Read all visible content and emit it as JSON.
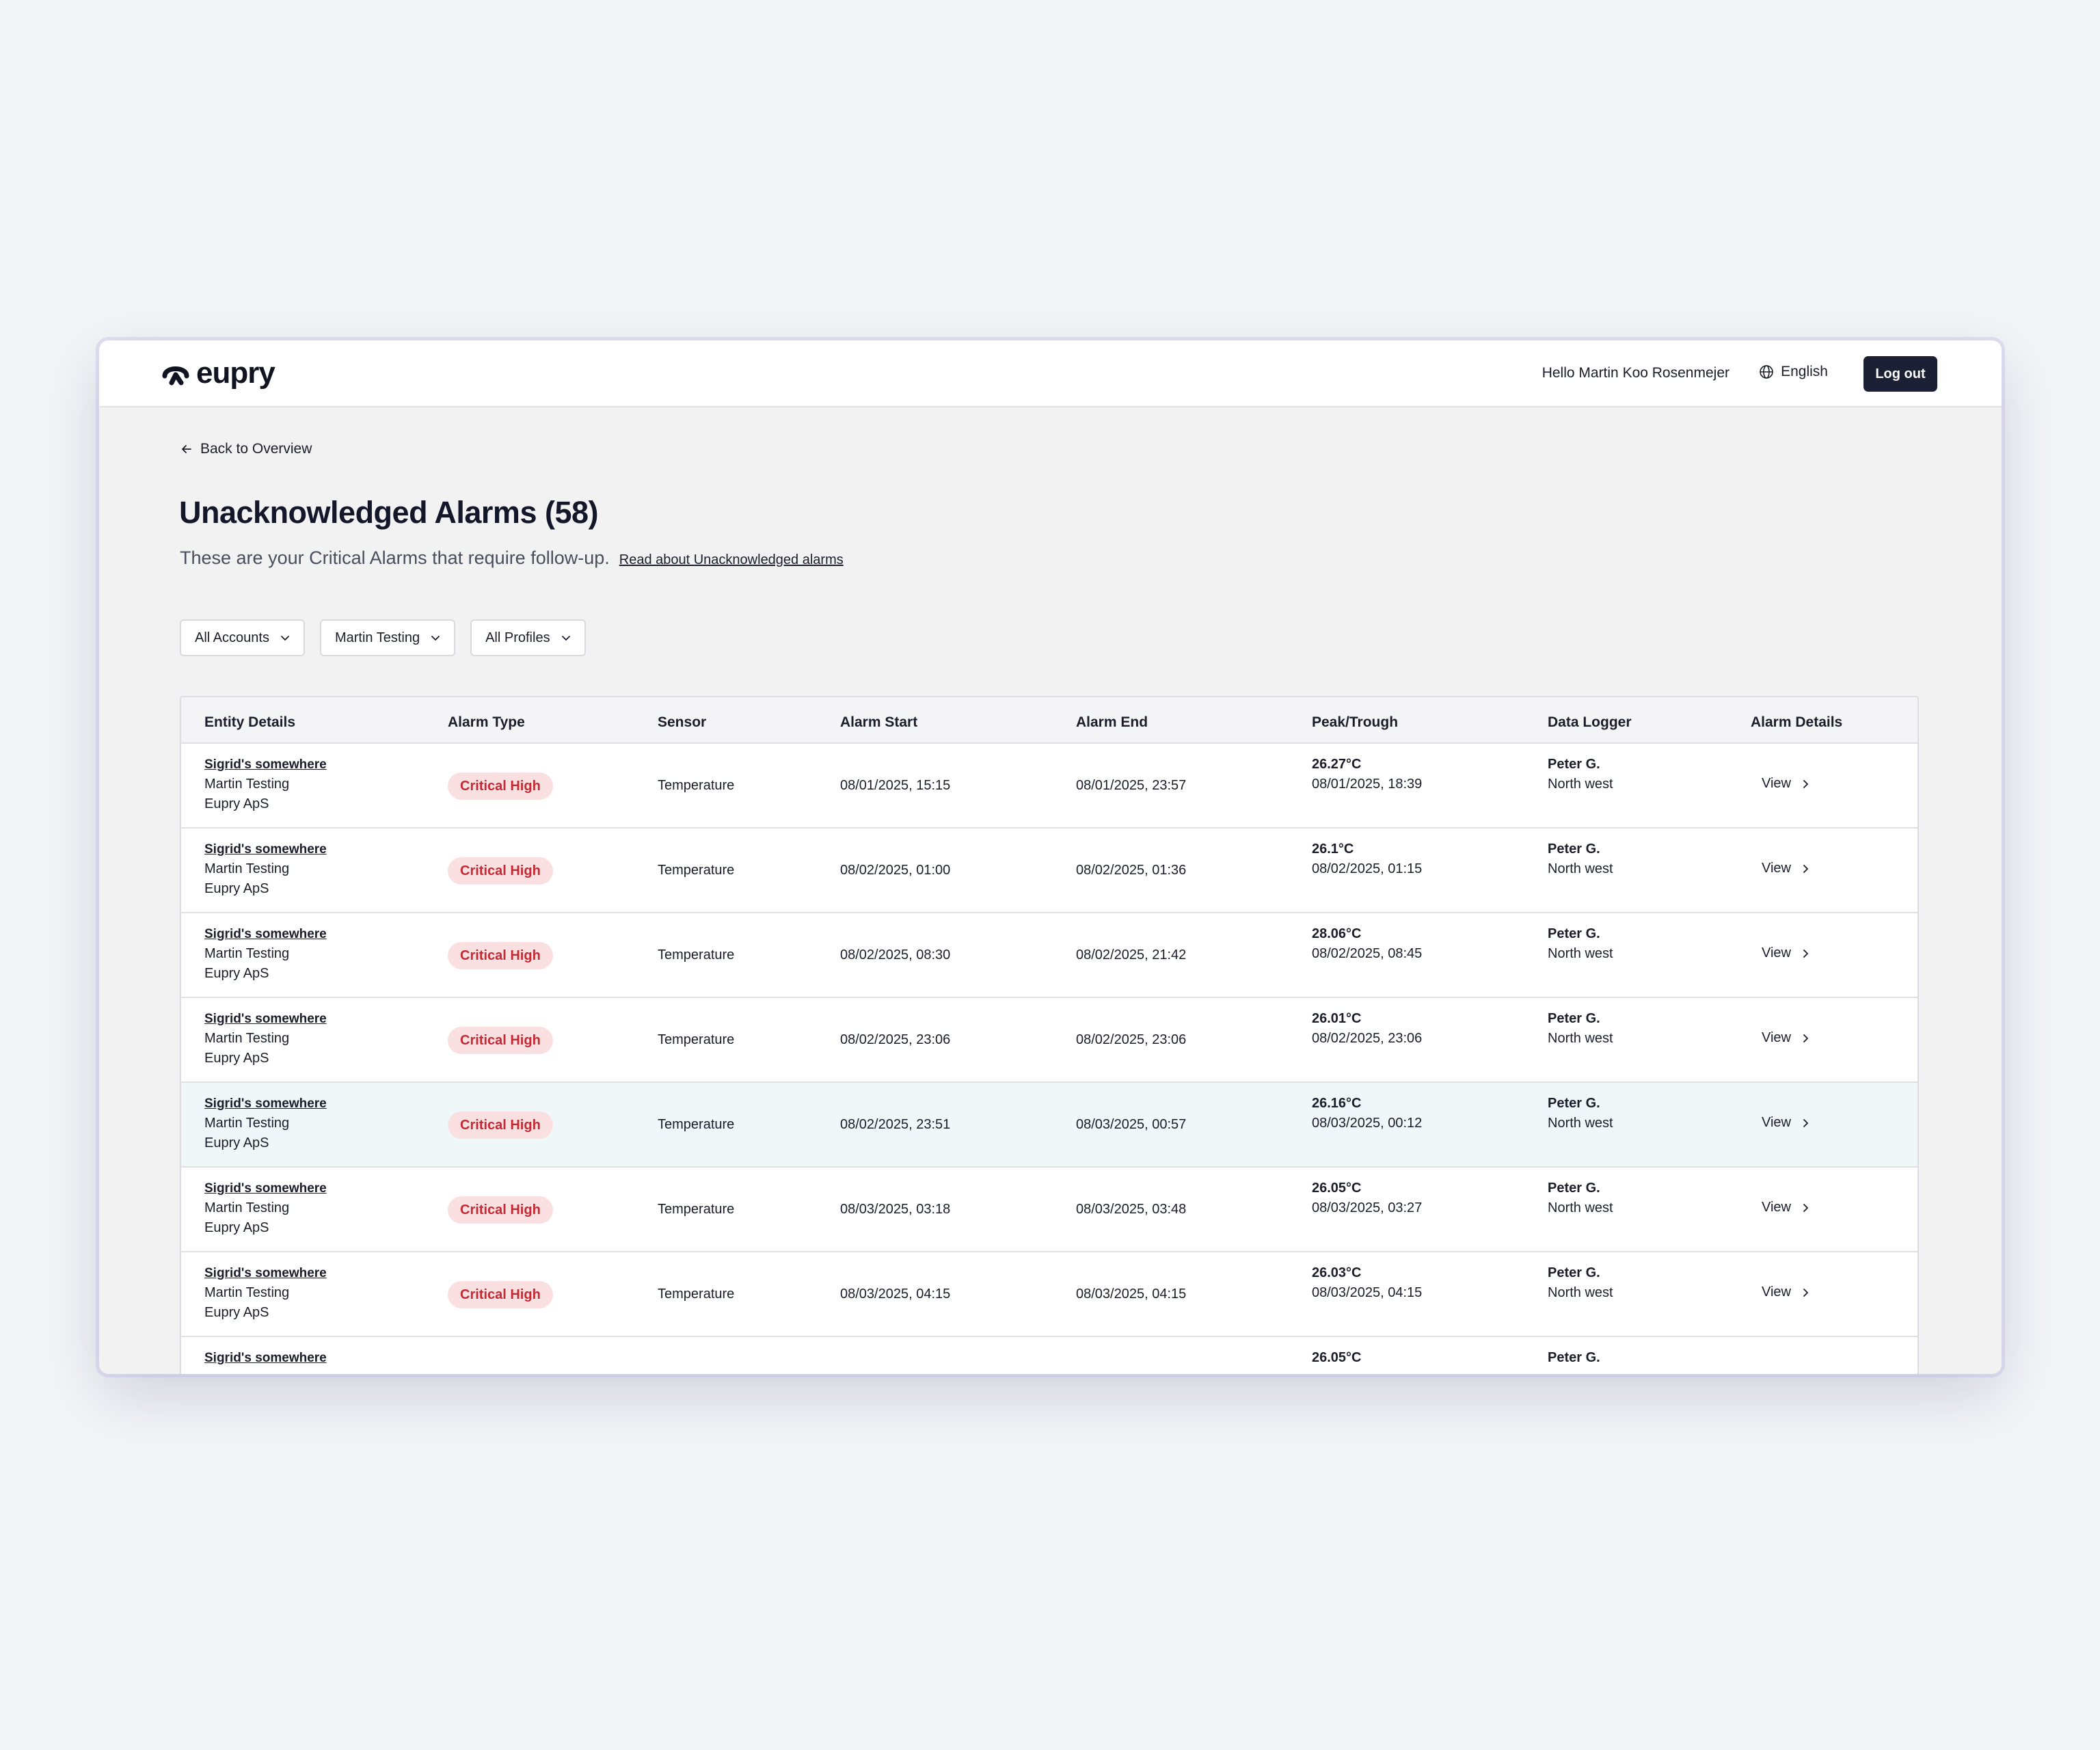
{
  "header": {
    "logo_text": "eupry",
    "greeting": "Hello Martin Koo Rosenmejer",
    "language": "English",
    "logout_label": "Log out"
  },
  "page": {
    "back_label": "Back to Overview",
    "title": "Unacknowledged Alarms (58)",
    "subtitle": "These are your Critical Alarms that require follow-up.",
    "read_more_link": "Read about Unacknowledged alarms"
  },
  "filters": [
    {
      "label": "All Accounts"
    },
    {
      "label": "Martin Testing"
    },
    {
      "label": "All Profiles"
    }
  ],
  "table": {
    "columns": [
      "Entity Details",
      "Alarm Type",
      "Sensor",
      "Alarm Start",
      "Alarm End",
      "Peak/Trough",
      "Data Logger",
      "Alarm Details"
    ],
    "rows": [
      {
        "entity": "Sigrid's somewhere",
        "account": "Martin Testing",
        "company": "Eupry ApS",
        "alarm_type": "Critical High",
        "sensor": "Temperature",
        "start": "08/01/2025, 15:15",
        "end": "08/01/2025, 23:57",
        "peak_value": "26.27°C",
        "peak_time": "08/01/2025, 18:39",
        "logger_name": "Peter G.",
        "logger_location": "North west",
        "details_label": "View"
      },
      {
        "entity": "Sigrid's somewhere",
        "account": "Martin Testing",
        "company": "Eupry ApS",
        "alarm_type": "Critical High",
        "sensor": "Temperature",
        "start": "08/02/2025, 01:00",
        "end": "08/02/2025, 01:36",
        "peak_value": "26.1°C",
        "peak_time": "08/02/2025, 01:15",
        "logger_name": "Peter G.",
        "logger_location": "North west",
        "details_label": "View"
      },
      {
        "entity": "Sigrid's somewhere",
        "account": "Martin Testing",
        "company": "Eupry ApS",
        "alarm_type": "Critical High",
        "sensor": "Temperature",
        "start": "08/02/2025, 08:30",
        "end": "08/02/2025, 21:42",
        "peak_value": "28.06°C",
        "peak_time": "08/02/2025, 08:45",
        "logger_name": "Peter G.",
        "logger_location": "North west",
        "details_label": "View"
      },
      {
        "entity": "Sigrid's somewhere",
        "account": "Martin Testing",
        "company": "Eupry ApS",
        "alarm_type": "Critical High",
        "sensor": "Temperature",
        "start": "08/02/2025, 23:06",
        "end": "08/02/2025, 23:06",
        "peak_value": "26.01°C",
        "peak_time": "08/02/2025, 23:06",
        "logger_name": "Peter G.",
        "logger_location": "North west",
        "details_label": "View"
      },
      {
        "entity": "Sigrid's somewhere",
        "account": "Martin Testing",
        "company": "Eupry ApS",
        "alarm_type": "Critical High",
        "sensor": "Temperature",
        "start": "08/02/2025, 23:51",
        "end": "08/03/2025, 00:57",
        "peak_value": "26.16°C",
        "peak_time": "08/03/2025, 00:12",
        "logger_name": "Peter G.",
        "logger_location": "North west",
        "details_label": "View"
      },
      {
        "entity": "Sigrid's somewhere",
        "account": "Martin Testing",
        "company": "Eupry ApS",
        "alarm_type": "Critical High",
        "sensor": "Temperature",
        "start": "08/03/2025, 03:18",
        "end": "08/03/2025, 03:48",
        "peak_value": "26.05°C",
        "peak_time": "08/03/2025, 03:27",
        "logger_name": "Peter G.",
        "logger_location": "North west",
        "details_label": "View"
      },
      {
        "entity": "Sigrid's somewhere",
        "account": "Martin Testing",
        "company": "Eupry ApS",
        "alarm_type": "Critical High",
        "sensor": "Temperature",
        "start": "08/03/2025, 04:15",
        "end": "08/03/2025, 04:15",
        "peak_value": "26.03°C",
        "peak_time": "08/03/2025, 04:15",
        "logger_name": "Peter G.",
        "logger_location": "North west",
        "details_label": "View"
      },
      {
        "entity": "Sigrid's somewhere",
        "peak_value": "26.05°C",
        "logger_name": "Peter G."
      }
    ]
  },
  "colors": {
    "accent_dark": "#1c2035",
    "badge_bg": "#fbe0e1",
    "badge_text": "#c42a33",
    "highlight_row": "#eff7f9"
  },
  "icons": [
    "eupry-logo-icon",
    "globe-icon",
    "arrow-left-icon",
    "chevron-down-icon",
    "chevron-right-icon",
    "chat-icon"
  ]
}
